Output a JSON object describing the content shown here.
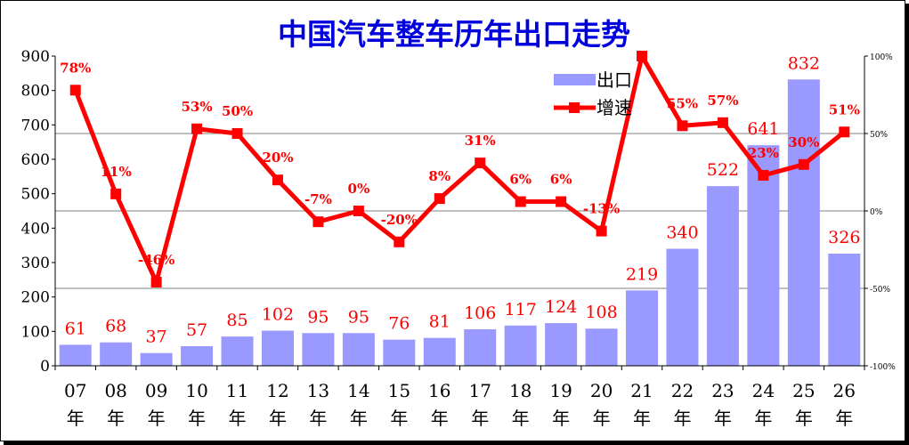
{
  "chart_data": {
    "type": "bar",
    "title": "中国汽车整车历年出口走势",
    "categories": [
      "07",
      "08",
      "09",
      "10",
      "11",
      "12",
      "13",
      "14",
      "15",
      "16",
      "17",
      "18",
      "19",
      "20",
      "21",
      "22",
      "23",
      "24",
      "25",
      "26"
    ],
    "category_suffix": "年",
    "series": [
      {
        "name": "出口",
        "type": "bar",
        "axis": "left",
        "color": "#9999ff",
        "values": [
          61,
          68,
          37,
          57,
          85,
          102,
          95,
          95,
          76,
          81,
          106,
          117,
          124,
          108,
          219,
          340,
          522,
          641,
          832,
          326
        ]
      },
      {
        "name": "增速",
        "type": "line",
        "axis": "right",
        "color": "#ff0000",
        "values": [
          78,
          11,
          -46,
          53,
          50,
          20,
          -7,
          0,
          -20,
          8,
          31,
          6,
          6,
          -13,
          103,
          55,
          57,
          23,
          30,
          51
        ],
        "labels": [
          "78%",
          "11%",
          "-46%",
          "53%",
          "50%",
          "20%",
          "-7%",
          "0%",
          "-20%",
          "8%",
          "31%",
          "6%",
          "6%",
          "-13%",
          "",
          "55%",
          "57%",
          "23%",
          "30%",
          "51%"
        ]
      }
    ],
    "ylim": [
      0,
      900
    ],
    "yticks": [
      "0",
      "100",
      "200",
      "300",
      "400",
      "500",
      "600",
      "700",
      "800",
      "900"
    ],
    "y2lim": [
      -100,
      100
    ],
    "y2ticks": [
      "-100%",
      "-50%",
      "0%",
      "50%",
      "100%"
    ],
    "y2gridlines": [
      -50,
      0,
      50
    ],
    "legend": "top-center",
    "xlabel": "",
    "ylabel": ""
  }
}
